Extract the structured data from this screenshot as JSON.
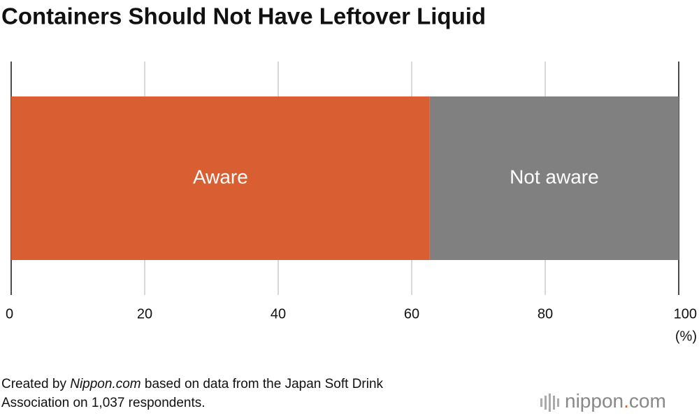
{
  "chart_data": {
    "type": "stacked_bar_horizontal",
    "title": "Containers Should Not Have Leftover Liquid",
    "categories": [
      null
    ],
    "series": [
      {
        "name": "Aware",
        "color": "#d95f32",
        "values": [
          62.7
        ]
      },
      {
        "name": "Not aware",
        "color": "#808080",
        "values": [
          37.3
        ]
      }
    ],
    "xlim": [
      0,
      100
    ],
    "xticks": [
      0,
      20,
      40,
      60,
      80,
      100
    ],
    "x_unit": "(%)",
    "grid": true
  },
  "source": [
    "Created by ",
    "Nippon.com",
    " based on data from the Japan Soft Drink",
    "Association on 1,037 respondents."
  ],
  "logo": [
    "nippon",
    ".",
    "com"
  ]
}
